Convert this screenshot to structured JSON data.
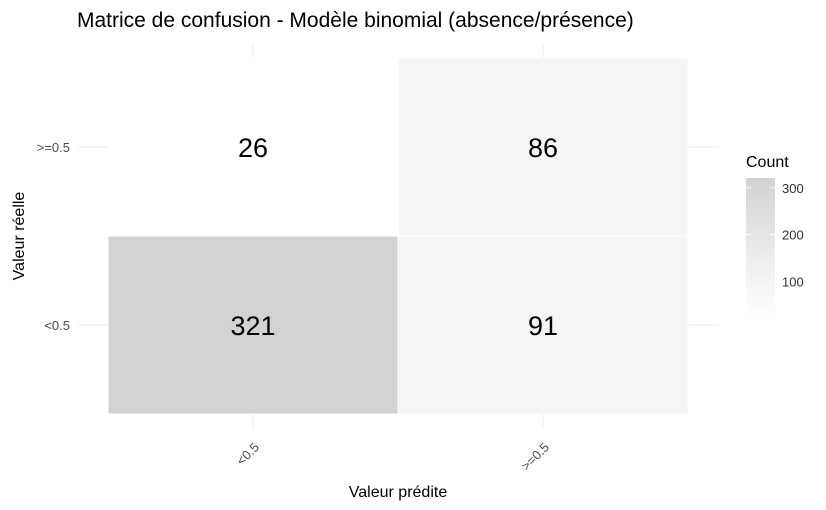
{
  "chart_data": {
    "type": "heatmap",
    "title": "Matrice de confusion - Modèle binomial (absence/présence)",
    "xlabel": "Valeur prédite",
    "ylabel": "Valeur réelle",
    "x_categories": [
      "<0.5",
      ">=0.5"
    ],
    "y_categories": [
      ">=0.5",
      "<0.5"
    ],
    "cells": [
      {
        "x": "<0.5",
        "y": ">=0.5",
        "value": 26,
        "label": "26"
      },
      {
        "x": ">=0.5",
        "y": ">=0.5",
        "value": 86,
        "label": "86"
      },
      {
        "x": "<0.5",
        "y": "<0.5",
        "value": 321,
        "label": "321"
      },
      {
        "x": ">=0.5",
        "y": "<0.5",
        "value": 91,
        "label": "91"
      }
    ],
    "legend": {
      "title": "Count",
      "ticks": [
        100,
        200,
        300
      ],
      "tick_labels": [
        "100",
        "200",
        "300"
      ],
      "low_color": "#ffffff",
      "high_color": "#d3d3d3",
      "range": [
        26,
        321
      ],
      "placement": "right"
    }
  }
}
